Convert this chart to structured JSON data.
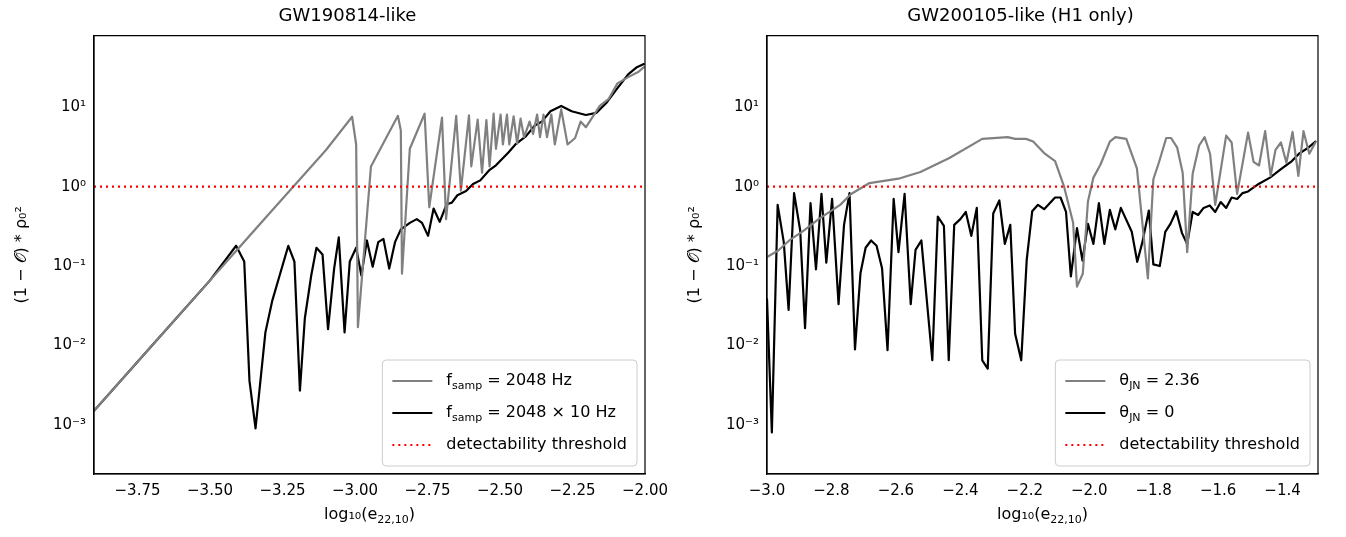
{
  "chart_data": [
    {
      "type": "line",
      "title": "GW190814-like",
      "xlabel": "log₁₀(e$_{22,10}$)",
      "ylabel": "(1 − 𝒪) * ρ₀²",
      "log": "y",
      "legend": "bottom right",
      "grid": false,
      "xlim": [
        -3.9,
        -2.0
      ],
      "xticks": [
        {
          "value": -3.75,
          "label": "−3.75"
        },
        {
          "value": -3.5,
          "label": "−3.50"
        },
        {
          "value": -3.25,
          "label": "−3.25"
        },
        {
          "value": -3.0,
          "label": "−3.00"
        },
        {
          "value": -2.75,
          "label": "−2.75"
        },
        {
          "value": -2.5,
          "label": "−2.50"
        },
        {
          "value": -2.25,
          "label": "−2.25"
        },
        {
          "value": -2.0,
          "label": "−2.00"
        }
      ],
      "ylim": [
        0.00024,
        80
      ],
      "yticks": [
        {
          "value": 0.001,
          "label": "10⁻³"
        },
        {
          "value": 0.01,
          "label": "10⁻²"
        },
        {
          "value": 0.1,
          "label": "10⁻¹"
        },
        {
          "value": 1,
          "label": "10⁰"
        },
        {
          "value": 10,
          "label": "10¹"
        }
      ],
      "ref_lines": [
        {
          "axis": "y",
          "value": 1,
          "label": "detectability threshold",
          "color": "#ff0000",
          "line_style": "dotted"
        }
      ],
      "series": [
        {
          "name": "f$_{samp}$ = 2048 Hz",
          "color": "#808080",
          "x": [
            -3.9,
            -3.7,
            -3.5,
            -3.3,
            -3.1,
            -3.01,
            -2.996,
            -2.99,
            -2.945,
            -2.852,
            -2.842,
            -2.838,
            -2.811,
            -2.76,
            -2.744,
            -2.7,
            -2.686,
            -2.651,
            -2.635,
            -2.607,
            -2.599,
            -2.577,
            -2.562,
            -2.547,
            -2.536,
            -2.522,
            -2.514,
            -2.498,
            -2.49,
            -2.476,
            -2.468,
            -2.453,
            -2.441,
            -2.429,
            -2.417,
            -2.398,
            -2.386,
            -2.372,
            -2.362,
            -2.35,
            -2.338,
            -2.323,
            -2.311,
            -2.289,
            -2.267,
            -2.241,
            -2.222,
            -2.204,
            -2.156,
            -2.125,
            -2.095,
            -2.058,
            -2.022,
            -2.004
          ],
          "values": [
            0.0015,
            0.01,
            0.066,
            0.44,
            2.9,
            7.6,
            3.4,
            0.017,
            1.8,
            7.8,
            5.1,
            0.08,
            3.0,
            8.3,
            0.55,
            7.4,
            0.39,
            7.8,
            0.89,
            7.9,
            1.8,
            7.0,
            1.5,
            6.9,
            1.8,
            8.3,
            3.0,
            8.1,
            3.4,
            8.1,
            3.4,
            7.7,
            3.5,
            7.2,
            4.2,
            6.6,
            4.6,
            8.1,
            4.2,
            8.1,
            4.2,
            8.1,
            3.4,
            9.4,
            3.4,
            4.1,
            6.6,
            5.6,
            10.4,
            12.8,
            20,
            24,
            28,
            32
          ]
        },
        {
          "name": "f$_{samp}$ = 2048 × 10 Hz",
          "color": "#000000",
          "x": [
            -3.9,
            -3.7,
            -3.5,
            -3.41,
            -3.382,
            -3.364,
            -3.343,
            -3.309,
            -3.285,
            -3.26,
            -3.23,
            -3.209,
            -3.19,
            -3.173,
            -3.151,
            -3.133,
            -3.112,
            -3.093,
            -3.072,
            -3.056,
            -3.036,
            -3.018,
            -2.996,
            -2.978,
            -2.959,
            -2.939,
            -2.92,
            -2.902,
            -2.882,
            -2.862,
            -2.842,
            -2.811,
            -2.787,
            -2.769,
            -2.748,
            -2.729,
            -2.708,
            -2.684,
            -2.666,
            -2.647,
            -2.617,
            -2.593,
            -2.568,
            -2.538,
            -2.514,
            -2.471,
            -2.447,
            -2.411,
            -2.38,
            -2.356,
            -2.326,
            -2.289,
            -2.253,
            -2.204,
            -2.168,
            -2.131,
            -2.095,
            -2.058,
            -2.028,
            -2.004
          ],
          "values": [
            0.0015,
            0.01,
            0.066,
            0.18,
            0.114,
            0.0036,
            0.0009,
            0.0146,
            0.037,
            0.076,
            0.18,
            0.114,
            0.0027,
            0.022,
            0.076,
            0.17,
            0.14,
            0.016,
            0.093,
            0.23,
            0.0146,
            0.114,
            0.17,
            0.076,
            0.21,
            0.098,
            0.2,
            0.22,
            0.093,
            0.2,
            0.29,
            0.35,
            0.39,
            0.35,
            0.24,
            0.53,
            0.36,
            0.6,
            0.63,
            0.78,
            0.88,
            1.08,
            1.2,
            1.6,
            1.86,
            2.7,
            3.4,
            4.3,
            5.9,
            6.6,
            8.9,
            10.4,
            8.9,
            8.0,
            8.5,
            11.6,
            17.4,
            26,
            32,
            35
          ]
        }
      ]
    },
    {
      "type": "line",
      "title": "GW200105-like (H1 only)",
      "xlabel": "log₁₀(e$_{22,10}$)",
      "ylabel": "(1 − 𝒪) * ρ₀²",
      "log": "y",
      "legend": "bottom right",
      "grid": false,
      "xlim": [
        -3.0,
        -1.29
      ],
      "xticks": [
        {
          "value": -3.0,
          "label": "−3.0"
        },
        {
          "value": -2.8,
          "label": "−2.8"
        },
        {
          "value": -2.6,
          "label": "−2.6"
        },
        {
          "value": -2.4,
          "label": "−2.4"
        },
        {
          "value": -2.2,
          "label": "−2.2"
        },
        {
          "value": -2.0,
          "label": "−2.0"
        },
        {
          "value": -1.8,
          "label": "−1.8"
        },
        {
          "value": -1.6,
          "label": "−1.6"
        },
        {
          "value": -1.4,
          "label": "−1.4"
        }
      ],
      "ylim": [
        0.00024,
        80
      ],
      "yticks": [
        {
          "value": 0.001,
          "label": "10⁻³"
        },
        {
          "value": 0.01,
          "label": "10⁻²"
        },
        {
          "value": 0.1,
          "label": "10⁻¹"
        },
        {
          "value": 1,
          "label": "10⁰"
        },
        {
          "value": 10,
          "label": "10¹"
        }
      ],
      "ref_lines": [
        {
          "axis": "y",
          "value": 1,
          "label": "detectability threshold",
          "color": "#ff0000",
          "line_style": "dotted"
        }
      ],
      "series": [
        {
          "name": "θ$_{JN}$ = 2.36",
          "color": "#808080",
          "x": [
            -3.0,
            -2.965,
            -2.931,
            -2.886,
            -2.84,
            -2.773,
            -2.739,
            -2.682,
            -2.592,
            -2.524,
            -2.434,
            -2.332,
            -2.253,
            -2.23,
            -2.196,
            -2.174,
            -2.14,
            -2.106,
            -2.078,
            -2.05,
            -2.038,
            -2.02,
            -2.004,
            -1.987,
            -1.965,
            -1.936,
            -1.919,
            -1.885,
            -1.852,
            -1.818,
            -1.801,
            -1.784,
            -1.761,
            -1.746,
            -1.727,
            -1.71,
            -1.696,
            -1.679,
            -1.659,
            -1.642,
            -1.625,
            -1.609,
            -1.575,
            -1.558,
            -1.541,
            -1.507,
            -1.49,
            -1.473,
            -1.454,
            -1.437,
            -1.422,
            -1.405,
            -1.388,
            -1.369,
            -1.351,
            -1.335,
            -1.317,
            -1.298
          ],
          "values": [
            0.13,
            0.157,
            0.21,
            0.28,
            0.39,
            0.59,
            0.81,
            1.11,
            1.26,
            1.53,
            2.3,
            4.0,
            4.2,
            4.0,
            4.0,
            3.7,
            2.65,
            2.1,
            1.0,
            0.35,
            0.055,
            0.08,
            0.65,
            1.3,
            1.9,
            3.7,
            4.2,
            4.0,
            1.7,
            0.07,
            1.24,
            2.0,
            4.1,
            4.1,
            3.1,
            1.5,
            0.15,
            1.45,
            3.3,
            4.2,
            2.6,
            0.59,
            4.4,
            3.6,
            0.81,
            4.8,
            2.05,
            1.85,
            5.0,
            1.37,
            2.9,
            3.6,
            2.0,
            4.9,
            1.37,
            5.0,
            2.6,
            3.6
          ]
        },
        {
          "name": "θ$_{JN}$ = 0",
          "color": "#000000",
          "x": [
            -3.0,
            -2.985,
            -2.967,
            -2.948,
            -2.933,
            -2.916,
            -2.897,
            -2.882,
            -2.865,
            -2.848,
            -2.831,
            -2.816,
            -2.798,
            -2.778,
            -2.761,
            -2.744,
            -2.727,
            -2.71,
            -2.694,
            -2.677,
            -2.66,
            -2.643,
            -2.626,
            -2.607,
            -2.592,
            -2.573,
            -2.554,
            -2.539,
            -2.521,
            -2.487,
            -2.47,
            -2.451,
            -2.436,
            -2.419,
            -2.4,
            -2.383,
            -2.366,
            -2.349,
            -2.332,
            -2.315,
            -2.298,
            -2.279,
            -2.262,
            -2.245,
            -2.23,
            -2.211,
            -2.194,
            -2.177,
            -2.159,
            -2.14,
            -2.106,
            -2.089,
            -2.072,
            -2.057,
            -2.038,
            -2.021,
            -2.004,
            -1.987,
            -1.97,
            -1.953,
            -1.936,
            -1.919,
            -1.902,
            -1.868,
            -1.851,
            -1.835,
            -1.815,
            -1.801,
            -1.781,
            -1.764,
            -1.748,
            -1.73,
            -1.712,
            -1.696,
            -1.679,
            -1.662,
            -1.645,
            -1.626,
            -1.609,
            -1.592,
            -1.575,
            -1.558,
            -1.541,
            -1.524,
            -1.507,
            -1.473,
            -1.439,
            -1.405,
            -1.371,
            -1.349,
            -1.32,
            -1.298
          ],
          "values": [
            0.038,
            0.0008,
            0.59,
            0.2,
            0.028,
            0.83,
            0.28,
            0.0165,
            0.62,
            0.091,
            0.81,
            0.11,
            0.7,
            0.033,
            0.33,
            0.83,
            0.0089,
            0.081,
            0.17,
            0.21,
            0.18,
            0.094,
            0.0087,
            0.7,
            0.15,
            0.81,
            0.033,
            0.16,
            0.21,
            0.0065,
            0.42,
            0.32,
            0.0065,
            0.33,
            0.39,
            0.48,
            0.24,
            0.54,
            0.0065,
            0.0051,
            0.46,
            0.67,
            0.19,
            0.33,
            0.014,
            0.0065,
            0.12,
            0.49,
            0.59,
            0.52,
            0.73,
            0.73,
            0.48,
            0.074,
            0.3,
            0.117,
            0.34,
            0.19,
            0.62,
            0.19,
            0.51,
            0.29,
            0.54,
            0.27,
            0.113,
            0.2,
            0.5,
            0.105,
            0.1,
            0.27,
            0.34,
            0.49,
            0.26,
            0.19,
            0.48,
            0.44,
            0.54,
            0.58,
            0.48,
            0.64,
            0.54,
            0.73,
            0.7,
            0.83,
            0.87,
            1.09,
            1.3,
            1.66,
            2.1,
            2.6,
            3.1,
            3.7
          ]
        }
      ]
    }
  ]
}
